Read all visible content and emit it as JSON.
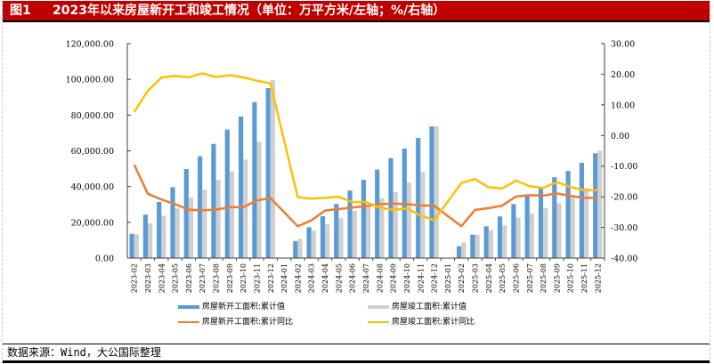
{
  "header": {
    "figure_label": "图1",
    "title": "2023年以来房屋新开工和竣工情况（单位：万平方米/左轴；%/右轴）"
  },
  "footer": {
    "source": "数据来源：Wind，大公国际整理"
  },
  "colors": {
    "title_bg": "#c00000",
    "new_starts_bar": "#5b9bd5",
    "completions_bar": "#d0d0d0",
    "new_starts_yoy": "#ed7d31",
    "completions_yoy": "#ffc000"
  },
  "chart_data": {
    "type": "bar",
    "title": "2023年以来房屋新开工和竣工情况（单位：万平方米/左轴；%/右轴）",
    "xlabel": "",
    "ylabel": "万平方米",
    "ylabel_right": "%",
    "ylim": [
      0,
      120000
    ],
    "ylim_right": [
      -40,
      30
    ],
    "yticks": [
      "0.00",
      "20,000.00",
      "40,000.00",
      "60,000.00",
      "80,000.00",
      "100,000.00",
      "120,000.00"
    ],
    "yticks_right": [
      "-40.00",
      "-30.00",
      "-20.00",
      "-10.00",
      "0.00",
      "10.00",
      "20.00",
      "30.00"
    ],
    "grid": false,
    "legend_position": "bottom",
    "categories": [
      "2023-02",
      "2023-03",
      "2023-04",
      "2023-05",
      "2023-06",
      "2023-07",
      "2023-08",
      "2023-09",
      "2023-10",
      "2023-11",
      "2023-12",
      "2024-01",
      "2024-02",
      "2024-03",
      "2024-04",
      "2024-05",
      "2024-06",
      "2024-07",
      "2024-08",
      "2024-09",
      "2024-10",
      "2024-11",
      "2024-12",
      "2025-01",
      "2025-02",
      "2025-03",
      "2025-04",
      "2025-05",
      "2025-06",
      "2025-07",
      "2025-08",
      "2025-09",
      "2025-10",
      "2025-11",
      "2025-12"
    ],
    "series": [
      {
        "name": "房屋新开工面积:累计值",
        "type": "bar",
        "axis": "left",
        "values": [
          13600,
          24300,
          31400,
          39700,
          49800,
          56900,
          63900,
          71900,
          79200,
          87300,
          95100,
          null,
          9500,
          17300,
          23400,
          30200,
          37800,
          43800,
          49500,
          55900,
          61300,
          67200,
          73700,
          null,
          6600,
          13100,
          17800,
          23300,
          30200,
          34900,
          39000,
          45200,
          48800,
          53300,
          58600
        ]
      },
      {
        "name": "房屋竣工面积:累计值",
        "type": "bar",
        "axis": "left",
        "values": [
          13300,
          19400,
          23700,
          27900,
          33900,
          38300,
          43800,
          48600,
          55100,
          65100,
          99600,
          null,
          10600,
          15400,
          18900,
          22300,
          26500,
          29700,
          33400,
          36900,
          42200,
          48200,
          73700,
          null,
          8800,
          13100,
          15600,
          18400,
          22600,
          24900,
          27900,
          30700,
          33900,
          39200,
          60100
        ]
      },
      {
        "name": "房屋新开工面积:累计同比",
        "type": "line",
        "axis": "right",
        "values": [
          -9.5,
          -19.0,
          -20.9,
          -22.4,
          -24.2,
          -24.4,
          -24.2,
          -23.4,
          -23.4,
          -21.2,
          -20.4,
          null,
          -29.6,
          -27.7,
          -24.5,
          -24.0,
          -23.5,
          -23.0,
          -22.4,
          -22.2,
          -22.4,
          -22.8,
          -22.9,
          null,
          -29.6,
          -24.3,
          -23.7,
          -22.9,
          -19.9,
          -19.5,
          -19.6,
          -18.9,
          -19.7,
          -20.3,
          -20.4
        ]
      },
      {
        "name": "房屋竣工面积:累计同比",
        "type": "line",
        "axis": "right",
        "values": [
          7.7,
          14.6,
          18.9,
          19.5,
          19.0,
          20.3,
          19.1,
          19.7,
          19.0,
          17.9,
          17.0,
          null,
          -20.1,
          -20.6,
          -20.3,
          -20.0,
          -21.7,
          -21.7,
          -23.5,
          -24.3,
          -23.8,
          -26.1,
          -27.6,
          null,
          -15.5,
          -14.2,
          -16.9,
          -17.3,
          -14.7,
          -16.5,
          -17.1,
          -15.2,
          -16.8,
          -17.8,
          -17.9
        ]
      }
    ]
  }
}
